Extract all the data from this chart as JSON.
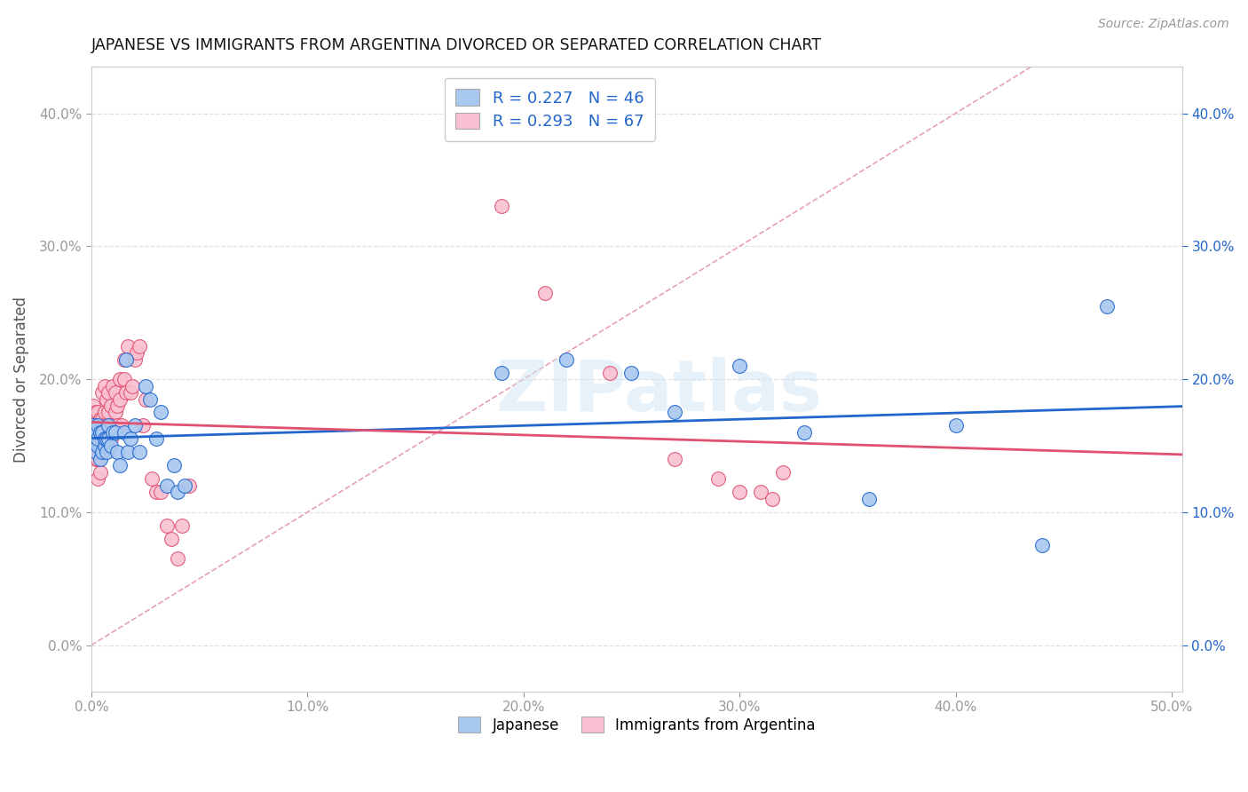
{
  "title": "JAPANESE VS IMMIGRANTS FROM ARGENTINA DIVORCED OR SEPARATED CORRELATION CHART",
  "source": "Source: ZipAtlas.com",
  "ylabel": "Divorced or Separated",
  "xlim": [
    0.0,
    0.505
  ],
  "ylim": [
    -0.035,
    0.435
  ],
  "watermark": "ZIPatlas",
  "legend_items": [
    {
      "label": "R = 0.227   N = 46",
      "color": "#a8c8f0",
      "line_color": "#2266cc"
    },
    {
      "label": "R = 0.293   N = 67",
      "color": "#f8c0d0",
      "line_color": "#e05070"
    }
  ],
  "japanese_x": [
    0.001,
    0.001,
    0.002,
    0.002,
    0.003,
    0.003,
    0.003,
    0.004,
    0.004,
    0.005,
    0.005,
    0.006,
    0.006,
    0.007,
    0.007,
    0.008,
    0.008,
    0.009,
    0.01,
    0.011,
    0.012,
    0.013,
    0.015,
    0.016,
    0.017,
    0.018,
    0.02,
    0.022,
    0.025,
    0.027,
    0.03,
    0.032,
    0.035,
    0.038,
    0.04,
    0.043,
    0.19,
    0.22,
    0.25,
    0.27,
    0.3,
    0.33,
    0.36,
    0.4,
    0.44,
    0.47
  ],
  "japanese_y": [
    0.155,
    0.165,
    0.145,
    0.16,
    0.15,
    0.155,
    0.165,
    0.14,
    0.16,
    0.145,
    0.16,
    0.15,
    0.155,
    0.145,
    0.155,
    0.155,
    0.165,
    0.15,
    0.16,
    0.16,
    0.145,
    0.135,
    0.16,
    0.215,
    0.145,
    0.155,
    0.165,
    0.145,
    0.195,
    0.185,
    0.155,
    0.175,
    0.12,
    0.135,
    0.115,
    0.12,
    0.205,
    0.215,
    0.205,
    0.175,
    0.21,
    0.16,
    0.11,
    0.165,
    0.075,
    0.255
  ],
  "argentina_x": [
    0.001,
    0.001,
    0.001,
    0.001,
    0.002,
    0.002,
    0.002,
    0.002,
    0.003,
    0.003,
    0.003,
    0.003,
    0.004,
    0.004,
    0.004,
    0.005,
    0.005,
    0.005,
    0.005,
    0.006,
    0.006,
    0.006,
    0.007,
    0.007,
    0.007,
    0.008,
    0.008,
    0.008,
    0.009,
    0.009,
    0.01,
    0.01,
    0.011,
    0.011,
    0.012,
    0.012,
    0.013,
    0.013,
    0.014,
    0.015,
    0.015,
    0.016,
    0.017,
    0.018,
    0.019,
    0.02,
    0.021,
    0.022,
    0.024,
    0.025,
    0.028,
    0.03,
    0.032,
    0.035,
    0.037,
    0.04,
    0.042,
    0.045,
    0.19,
    0.21,
    0.24,
    0.27,
    0.29,
    0.3,
    0.31,
    0.315,
    0.32
  ],
  "argentina_y": [
    0.155,
    0.165,
    0.17,
    0.18,
    0.14,
    0.15,
    0.165,
    0.175,
    0.125,
    0.14,
    0.155,
    0.175,
    0.13,
    0.155,
    0.17,
    0.145,
    0.155,
    0.17,
    0.19,
    0.16,
    0.175,
    0.195,
    0.155,
    0.165,
    0.185,
    0.155,
    0.175,
    0.19,
    0.155,
    0.18,
    0.165,
    0.195,
    0.175,
    0.19,
    0.165,
    0.18,
    0.185,
    0.2,
    0.165,
    0.2,
    0.215,
    0.19,
    0.225,
    0.19,
    0.195,
    0.215,
    0.22,
    0.225,
    0.165,
    0.185,
    0.125,
    0.115,
    0.115,
    0.09,
    0.08,
    0.065,
    0.09,
    0.12,
    0.33,
    0.265,
    0.205,
    0.14,
    0.125,
    0.115,
    0.115,
    0.11,
    0.13
  ],
  "diag_line_color": "#e8a0b0",
  "background_color": "#ffffff",
  "grid_color": "#e0e0e0",
  "bottom_legend": [
    "Japanese",
    "Immigrants from Argentina"
  ]
}
